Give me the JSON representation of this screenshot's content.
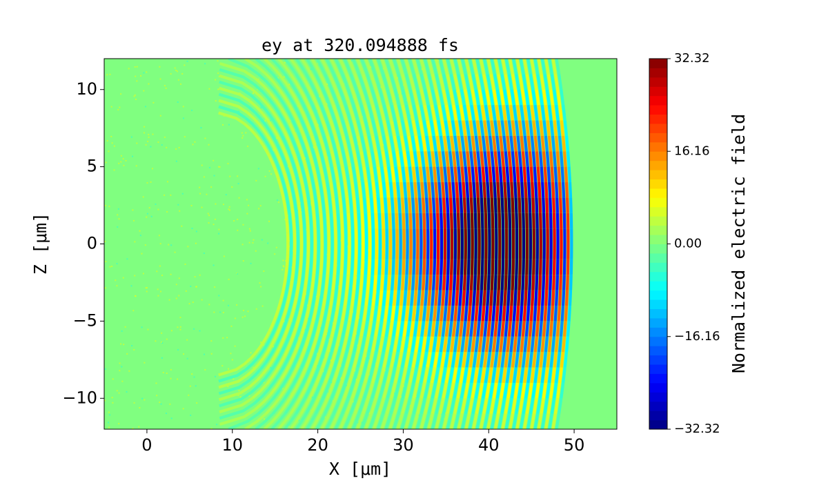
{
  "chart_data": {
    "type": "field",
    "title": "ey at 320.094888 fs",
    "xlabel": "X [μm]",
    "ylabel": "Z [μm]",
    "xlim": [
      -5,
      55
    ],
    "xticks": [
      0,
      10,
      20,
      30,
      40,
      50
    ],
    "ylim": [
      -12,
      12
    ],
    "yticks": [
      {
        "value": -10,
        "label": "−10"
      },
      {
        "value": -5,
        "label": "−5"
      },
      0,
      5,
      10
    ],
    "colormap": "jet",
    "clim": [
      -32.32,
      32.32
    ],
    "cticks": [
      {
        "value": -32.32,
        "label": "−32.32"
      },
      {
        "value": -16.16,
        "label": "−16.16"
      },
      {
        "value": 0,
        "label": "0.00"
      },
      16.16,
      32.32
    ],
    "colorbar_label": "Normalized electric field"
  }
}
